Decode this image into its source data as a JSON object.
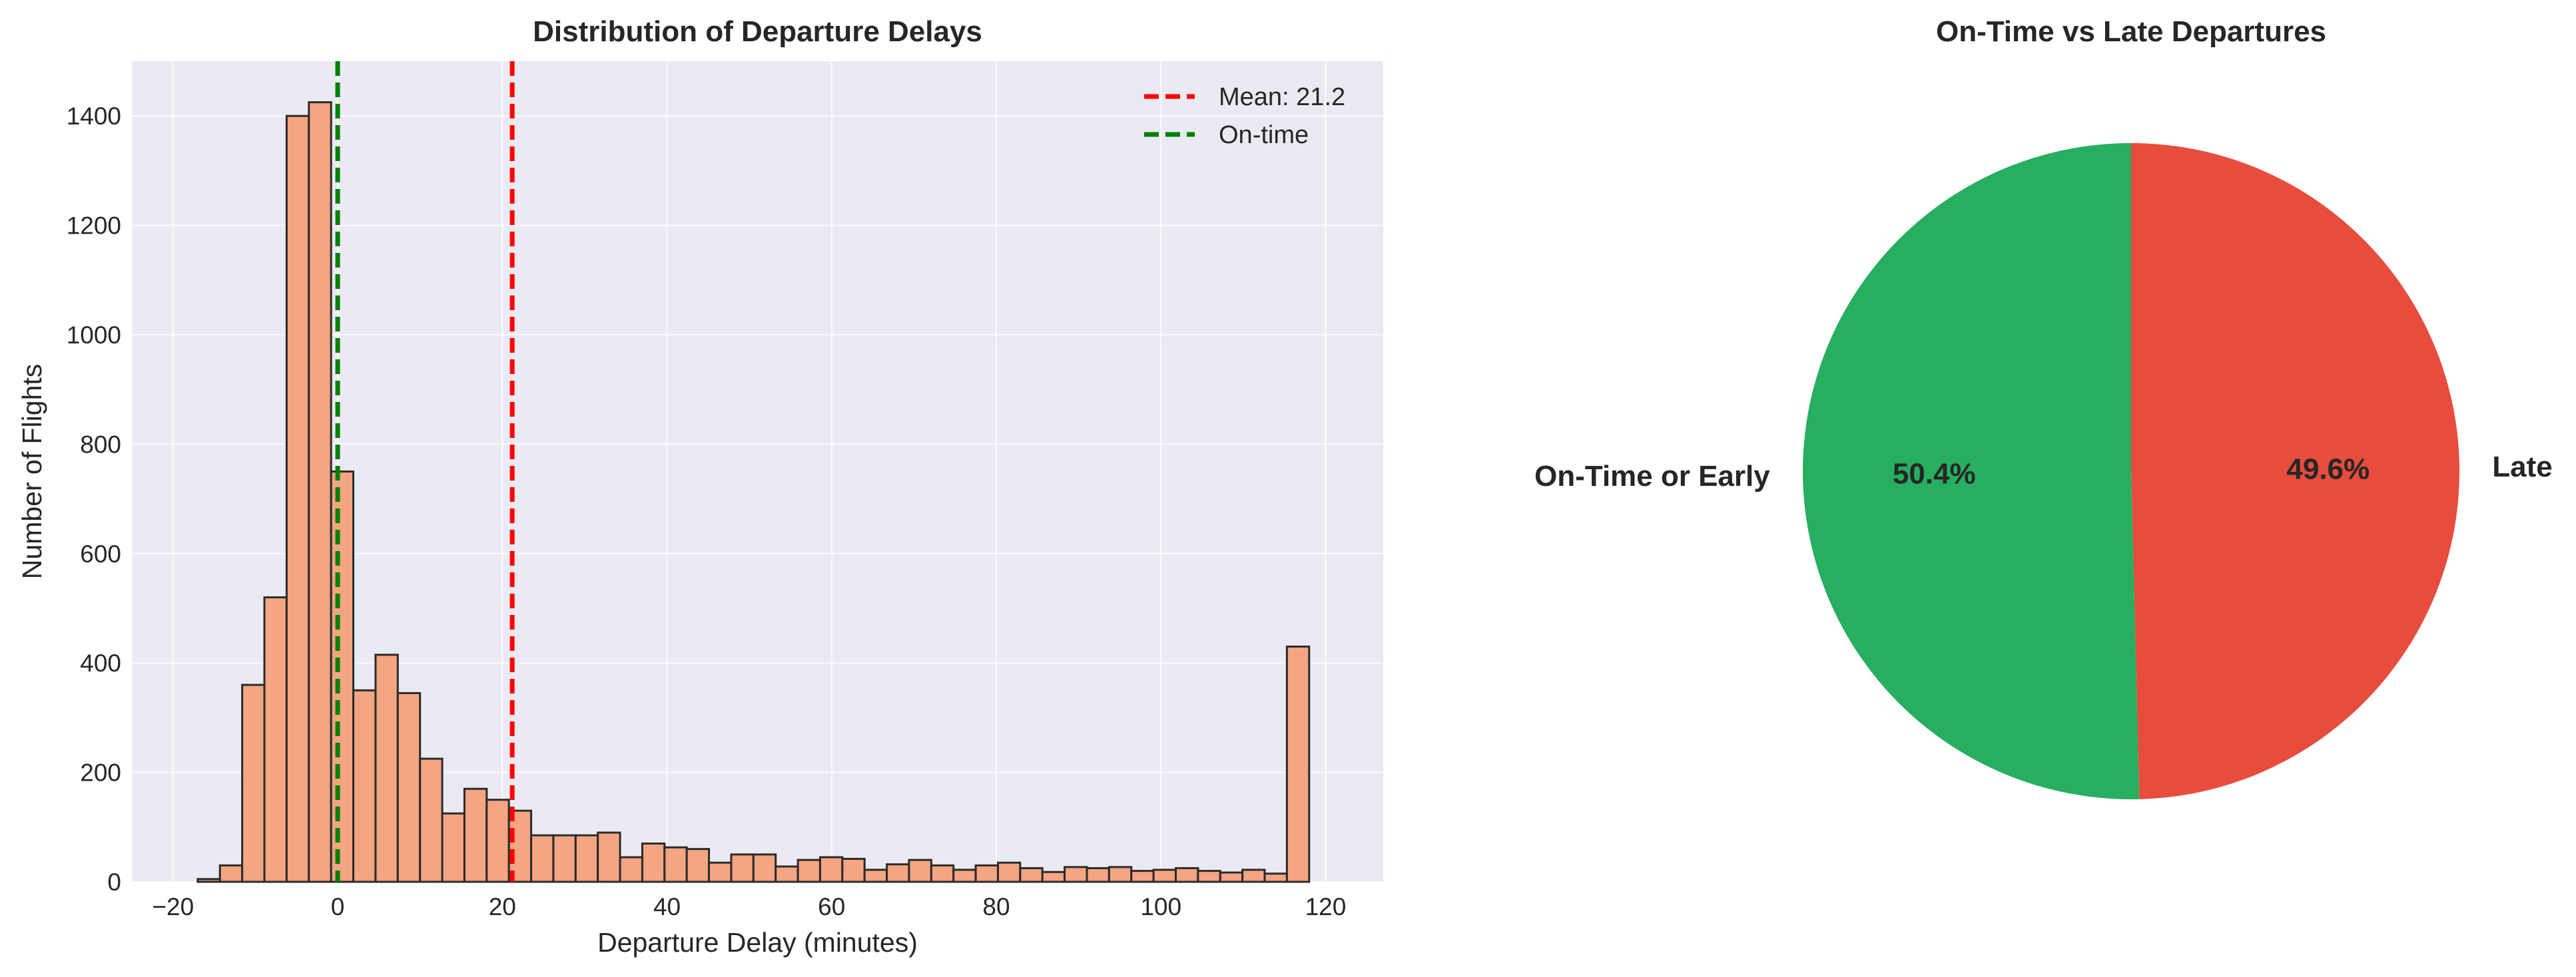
{
  "chart_data": [
    {
      "type": "histogram",
      "title": "Distribution of Departure Delays",
      "xlabel": "Departure Delay (minutes)",
      "ylabel": "Number of Flights",
      "xlim": [
        -25,
        127
      ],
      "ylim": [
        0,
        1500
      ],
      "xticks": [
        -20,
        0,
        20,
        40,
        60,
        80,
        100,
        120
      ],
      "xtick_labels": [
        "−20",
        "0",
        "20",
        "40",
        "60",
        "80",
        "100",
        "120"
      ],
      "yticks": [
        0,
        200,
        400,
        600,
        800,
        1000,
        1200,
        1400
      ],
      "bins": {
        "start": -17,
        "width": 2.7,
        "counts": [
          5,
          30,
          360,
          520,
          1400,
          1425,
          750,
          350,
          415,
          345,
          225,
          125,
          170,
          150,
          130,
          85,
          85,
          85,
          90,
          45,
          70,
          63,
          60,
          35,
          50,
          50,
          28,
          40,
          45,
          42,
          22,
          32,
          40,
          30,
          22,
          30,
          35,
          25,
          18,
          27,
          25,
          27,
          20,
          22,
          25,
          20,
          17,
          22,
          15,
          430
        ]
      },
      "bar_color": "#F4A582",
      "vlines": [
        {
          "name": "Mean: 21.2",
          "x": 21.2,
          "color": "#FF0000",
          "style": "dashed"
        },
        {
          "name": "On-time",
          "x": 0,
          "color": "#008000",
          "style": "dashed"
        }
      ],
      "legend_position": "top-right",
      "grid": true
    },
    {
      "type": "pie",
      "title": "On-Time vs Late Departures",
      "slices": [
        {
          "label": "Late",
          "value": 49.6,
          "pct_label": "49.6%",
          "color": "#E74C3C"
        },
        {
          "label": "On-Time or Early",
          "value": 50.4,
          "pct_label": "50.4%",
          "color": "#27AE60"
        }
      ]
    }
  ]
}
